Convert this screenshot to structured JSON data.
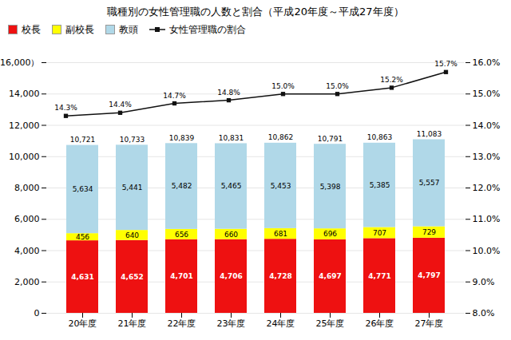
{
  "chart_data": {
    "type": "bar",
    "stacked": true,
    "title": "職種別の女性管理職の人数と割合（平成20年度～平成27年度）",
    "categories": [
      "20年度",
      "21年度",
      "22年度",
      "23年度",
      "24年度",
      "25年度",
      "26年度",
      "27年度"
    ],
    "series": [
      {
        "name": "校長",
        "color": "#ee1111",
        "values": [
          4631,
          4652,
          4701,
          4706,
          4728,
          4697,
          4771,
          4797
        ],
        "value_labels": [
          "4,631",
          "4,652",
          "4,701",
          "4,706",
          "4,728",
          "4,697",
          "4,771",
          "4,797"
        ]
      },
      {
        "name": "副校長",
        "color": "#ffff00",
        "values": [
          456,
          640,
          656,
          660,
          681,
          696,
          707,
          729
        ]
      },
      {
        "name": "教頭",
        "color": "#b0d8e8",
        "values": [
          5634,
          5441,
          5482,
          5465,
          5453,
          5398,
          5385,
          5557
        ],
        "value_labels": [
          "5,634",
          "5,441",
          "5,482",
          "5,465",
          "5,453",
          "5,398",
          "5,385",
          "5,557"
        ]
      },
      {
        "name": "女性管理職の割合",
        "type": "line",
        "axis": "y2",
        "color": "#111111",
        "marker": "square",
        "values": [
          14.3,
          14.4,
          14.7,
          14.8,
          15.0,
          15.0,
          15.2,
          15.7
        ],
        "value_labels": [
          "14.3%",
          "14.4%",
          "14.7%",
          "14.8%",
          "15.0%",
          "15.0%",
          "15.2%",
          "15.7%"
        ]
      }
    ],
    "totals": [
      10721,
      10733,
      10839,
      10831,
      10862,
      10791,
      10863,
      11083
    ],
    "total_labels": [
      "10,721",
      "10,733",
      "10,839",
      "10,831",
      "10,862",
      "10,791",
      "10,863",
      "11,083"
    ],
    "ylim": [
      0,
      16000
    ],
    "yticks": [
      0,
      {
        "value": 2000,
        "label": "2,000"
      },
      {
        "value": 4000,
        "label": "4,000"
      },
      {
        "value": 6000,
        "label": "6,000"
      },
      {
        "value": 8000,
        "label": "8,000"
      },
      {
        "value": 10000,
        "label": "10,000"
      },
      {
        "value": 12000,
        "label": "12,000"
      },
      {
        "value": 14000,
        "label": "14,000"
      },
      {
        "value": 16000,
        "label": "16,000）"
      }
    ],
    "y2lim": [
      8.0,
      16.0
    ],
    "y2ticks": [
      {
        "value": 8.0,
        "label": "8.0%"
      },
      {
        "value": 9.0,
        "label": "9.0%"
      },
      {
        "value": 10.0,
        "label": "10.0%"
      },
      {
        "value": 11.0,
        "label": "11.0%"
      },
      {
        "value": 12.0,
        "label": "12.0%"
      },
      {
        "value": 13.0,
        "label": "13.0%"
      },
      {
        "value": 14.0,
        "label": "14.0%"
      },
      {
        "value": 15.0,
        "label": "15.0%"
      },
      {
        "value": 16.0,
        "label": "16.0%"
      }
    ],
    "grid": true,
    "legend": "upper left",
    "data_labels": true
  }
}
